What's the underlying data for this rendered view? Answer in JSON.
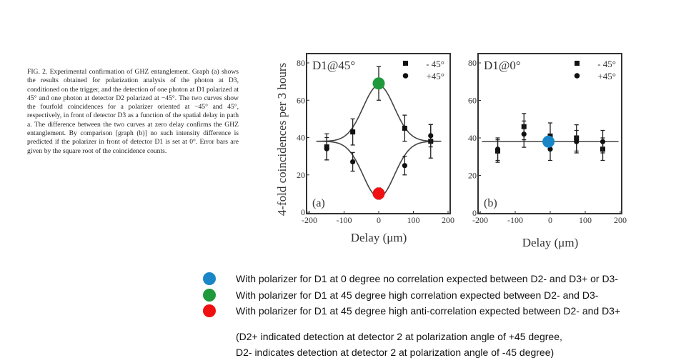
{
  "caption": "FIG. 2. Experimental confirmation of GHZ entanglement. Graph (a) shows the results obtained for polarization analysis of the photon at D3, conditioned on the trigger, and the detection of one photon at D1 polarized at 45° and one photon at detector D2 polarized at −45°. The two curves show the fourfold coincidences for a polarizer oriented at −45° and 45°, respectively, in front of detector D3 as a function of the spatial delay in path a. The difference between the two curves at zero delay confirms the GHZ entanglement. By comparison [graph (b)] no such intensity difference is predicted if the polarizer in front of detector D1 is set at 0°. Error bars are given by the square root of the coincidence counts.",
  "chart_data": [
    {
      "type": "scatter",
      "panel": "(a)",
      "title": "D1@45°",
      "xlabel": "Delay (μm)",
      "ylabel": "4-fold coincidences per 3 hours",
      "xlim": [
        -200,
        200
      ],
      "ylim": [
        0,
        80
      ],
      "xticks": [
        "-200",
        "-100",
        "0",
        "100",
        "200"
      ],
      "yticks": [
        "0",
        "20",
        "40",
        "60",
        "80"
      ],
      "x": [
        -150,
        -75,
        0,
        75,
        150
      ],
      "series": [
        {
          "name": "- 45°",
          "marker": "square",
          "values": [
            35,
            43,
            69,
            45,
            38
          ],
          "errors": [
            7,
            7,
            9,
            7,
            9
          ]
        },
        {
          "name": "+45°",
          "marker": "circle",
          "values": [
            34,
            27,
            10,
            25,
            41
          ],
          "errors": [
            6,
            5,
            3,
            5,
            6
          ]
        }
      ],
      "fit": "gaussian dip/peak around baseline 38",
      "highlights": [
        {
          "x": 0,
          "y": 69,
          "color": "#1e9a3c"
        },
        {
          "x": 0,
          "y": 10,
          "color": "#f01010"
        }
      ]
    },
    {
      "type": "scatter",
      "panel": "(b)",
      "title": "D1@0°",
      "xlabel": "Delay (μm)",
      "ylabel": "",
      "xlim": [
        -200,
        200
      ],
      "ylim": [
        0,
        80
      ],
      "xticks": [
        "-200",
        "-100",
        "0",
        "100",
        "200"
      ],
      "yticks": [
        "0",
        "20",
        "40",
        "60",
        "80"
      ],
      "x": [
        -150,
        -75,
        0,
        75,
        150
      ],
      "series": [
        {
          "name": "- 45°",
          "marker": "square",
          "values": [
            33,
            46,
            41,
            40,
            34
          ],
          "errors": [
            6,
            7,
            7,
            7,
            6
          ]
        },
        {
          "name": "+45°",
          "marker": "circle",
          "values": [
            34,
            42,
            34,
            38,
            38
          ],
          "errors": [
            6,
            7,
            6,
            6,
            6
          ]
        }
      ],
      "fit": "flat line at 38",
      "highlights": [
        {
          "x": -5,
          "y": 38,
          "color": "#1a86c8"
        }
      ]
    }
  ],
  "legend": [
    {
      "color": "#1a86c8",
      "text": "With polarizer for D1 at 0 degree no correlation expected between D2- and D3+ or D3-"
    },
    {
      "color": "#1e9a3c",
      "text": "With polarizer for D1 at 45 degree high correlation expected between D2- and D3-"
    },
    {
      "color": "#f01010",
      "text": "With polarizer for D1 at 45 degree high anti-correlation expected between D2- and D3+"
    }
  ],
  "notes": [
    "(D2+ indicated detection at detector 2 at polarization angle of +45 degree,",
    "D2- indicates detection at detector 2 at polarization angle of -45 degree)"
  ]
}
